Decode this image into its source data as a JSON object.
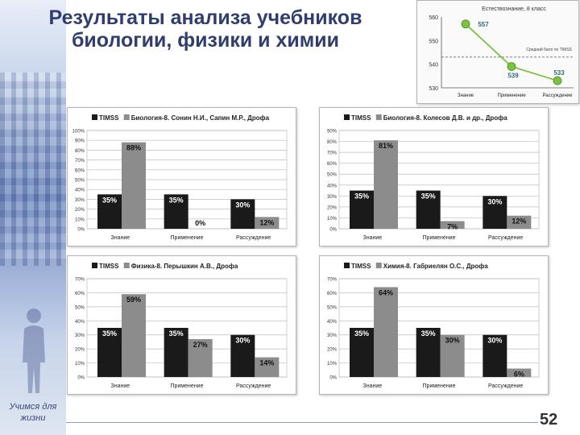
{
  "slide": {
    "title": "Результаты анализа учебников биологии, физики и химии",
    "motto": "Учимся для жизни",
    "page_number": "52"
  },
  "chart_data": [
    {
      "type": "line",
      "title": "Естествознание, 8 класс",
      "categories": [
        "Знание",
        "Применение",
        "Рассуждение"
      ],
      "values": [
        557,
        539,
        533
      ],
      "ylim": [
        530,
        560
      ],
      "yticks": [
        530,
        540,
        550,
        560
      ],
      "reference_line": {
        "value": 543,
        "label": "Средний балл по TIMSS"
      },
      "marker_color": "#7cc242",
      "grid": false
    },
    {
      "type": "bar",
      "categories": [
        "Знание",
        "Применение",
        "Рассуждение"
      ],
      "series": [
        {
          "name": "TIMSS",
          "color": "#1a1a1a",
          "labels": [
            "35%",
            "35%",
            "30%"
          ],
          "values": [
            35,
            35,
            30
          ]
        },
        {
          "name": "Биология-8. Сонин Н.И., Сапин М.Р., Дрофа",
          "color": "#8c8c8c",
          "labels": [
            "88%",
            "0%",
            "12%"
          ],
          "values": [
            88,
            0,
            12
          ]
        }
      ],
      "ylim": [
        0,
        100
      ],
      "yticks": [
        0,
        10,
        20,
        30,
        40,
        50,
        60,
        70,
        80,
        90,
        100
      ],
      "ytick_labels": [
        "0%",
        "10%",
        "20%",
        "30%",
        "40%",
        "50%",
        "60%",
        "70%",
        "80%",
        "90%",
        "100%"
      ],
      "legend": "top",
      "grid": true
    },
    {
      "type": "bar",
      "categories": [
        "Знание",
        "Применение",
        "Рассуждение"
      ],
      "series": [
        {
          "name": "TIMSS",
          "color": "#1a1a1a",
          "labels": [
            "35%",
            "35%",
            "30%"
          ],
          "values": [
            35,
            35,
            30
          ]
        },
        {
          "name": "Биология-8. Колесов Д.В. и др., Дрофа",
          "color": "#8c8c8c",
          "labels": [
            "81%",
            "7%",
            "12%"
          ],
          "values": [
            81,
            7,
            12
          ]
        }
      ],
      "ylim": [
        0,
        90
      ],
      "yticks": [
        0,
        10,
        20,
        30,
        40,
        50,
        60,
        70,
        80,
        90
      ],
      "ytick_labels": [
        "0%",
        "10%",
        "20%",
        "30%",
        "40%",
        "50%",
        "60%",
        "70%",
        "80%",
        "90%"
      ],
      "legend": "top",
      "grid": true
    },
    {
      "type": "bar",
      "categories": [
        "Знание",
        "Применение",
        "Рассуждение"
      ],
      "series": [
        {
          "name": "TIMSS",
          "color": "#1a1a1a",
          "labels": [
            "35%",
            "35%",
            "30%"
          ],
          "values": [
            35,
            35,
            30
          ]
        },
        {
          "name": "Физика-8. Перышкин А.В., Дрофа",
          "color": "#8c8c8c",
          "labels": [
            "59%",
            "27%",
            "14%"
          ],
          "values": [
            59,
            27,
            14
          ]
        }
      ],
      "ylim": [
        0,
        70
      ],
      "yticks": [
        0,
        10,
        20,
        30,
        40,
        50,
        60,
        70
      ],
      "ytick_labels": [
        "0%",
        "10%",
        "20%",
        "30%",
        "40%",
        "50%",
        "60%",
        "70%"
      ],
      "legend": "top",
      "grid": true
    },
    {
      "type": "bar",
      "categories": [
        "Знание",
        "Применение",
        "Рассуждение"
      ],
      "series": [
        {
          "name": "TIMSS",
          "color": "#1a1a1a",
          "labels": [
            "35%",
            "35%",
            "30%"
          ],
          "values": [
            35,
            35,
            30
          ]
        },
        {
          "name": "Химия-8. Габриелян О.С., Дрофа",
          "color": "#8c8c8c",
          "labels": [
            "64%",
            "30%",
            "6%"
          ],
          "values": [
            64,
            30,
            6
          ]
        }
      ],
      "ylim": [
        0,
        70
      ],
      "yticks": [
        0,
        10,
        20,
        30,
        40,
        50,
        60,
        70
      ],
      "ytick_labels": [
        "0%",
        "10%",
        "20%",
        "30%",
        "40%",
        "50%",
        "60%",
        "70%"
      ],
      "legend": "top",
      "grid": true
    }
  ]
}
